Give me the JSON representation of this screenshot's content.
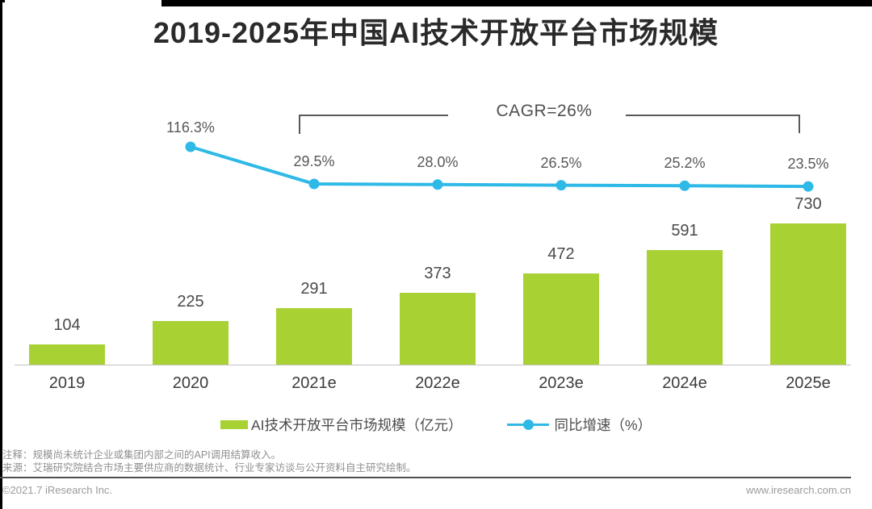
{
  "page": {
    "title": "2019-2025年中国AI技术开放平台市场规模"
  },
  "colors": {
    "bar": "#a8d133",
    "line": "#2eb9e7",
    "bracket": "#58595b",
    "title_text": "#2a2a2a",
    "footnote_text": "#909090"
  },
  "chart_data": {
    "type": "bar+line",
    "title": "2019-2025年中国AI技术开放平台市场规模",
    "categories": [
      "2019",
      "2020",
      "2021e",
      "2022e",
      "2023e",
      "2024e",
      "2025e"
    ],
    "series": [
      {
        "name": "AI技术开放平台市场规模（亿元）",
        "type": "bar",
        "unit": "亿元",
        "values": [
          104,
          225,
          291,
          373,
          472,
          591,
          730
        ],
        "color": "#a8d133"
      },
      {
        "name": "同比增速（%）",
        "type": "line",
        "unit": "%",
        "values": [
          null,
          116.3,
          29.5,
          28.0,
          26.5,
          25.2,
          23.5
        ],
        "labels": [
          "",
          "116.3%",
          "29.5%",
          "28.0%",
          "26.5%",
          "25.2%",
          "23.5%"
        ],
        "color": "#2eb9e7"
      }
    ],
    "annotations": [
      {
        "text": "CAGR=26%",
        "span": [
          "2021e",
          "2025e"
        ]
      }
    ],
    "value_labels": true,
    "grid": false,
    "legend_position": "bottom",
    "ylim_bar": [
      0,
      760
    ]
  },
  "legend": {
    "items": [
      {
        "label": "AI技术开放平台市场规模（亿元）",
        "marker": "bar-swatch"
      },
      {
        "label": "同比增速（%）",
        "marker": "line-marker"
      }
    ]
  },
  "footnotes": {
    "note": "注释：规模尚未统计企业或集团内部之间的API调用结算收入。",
    "source": "来源：艾瑞研究院结合市场主要供应商的数据统计、行业专家访谈与公开资料自主研究绘制。"
  },
  "footer": {
    "copyright": "©2021.7 iResearch Inc.",
    "website": "www.iresearch.com.cn"
  }
}
